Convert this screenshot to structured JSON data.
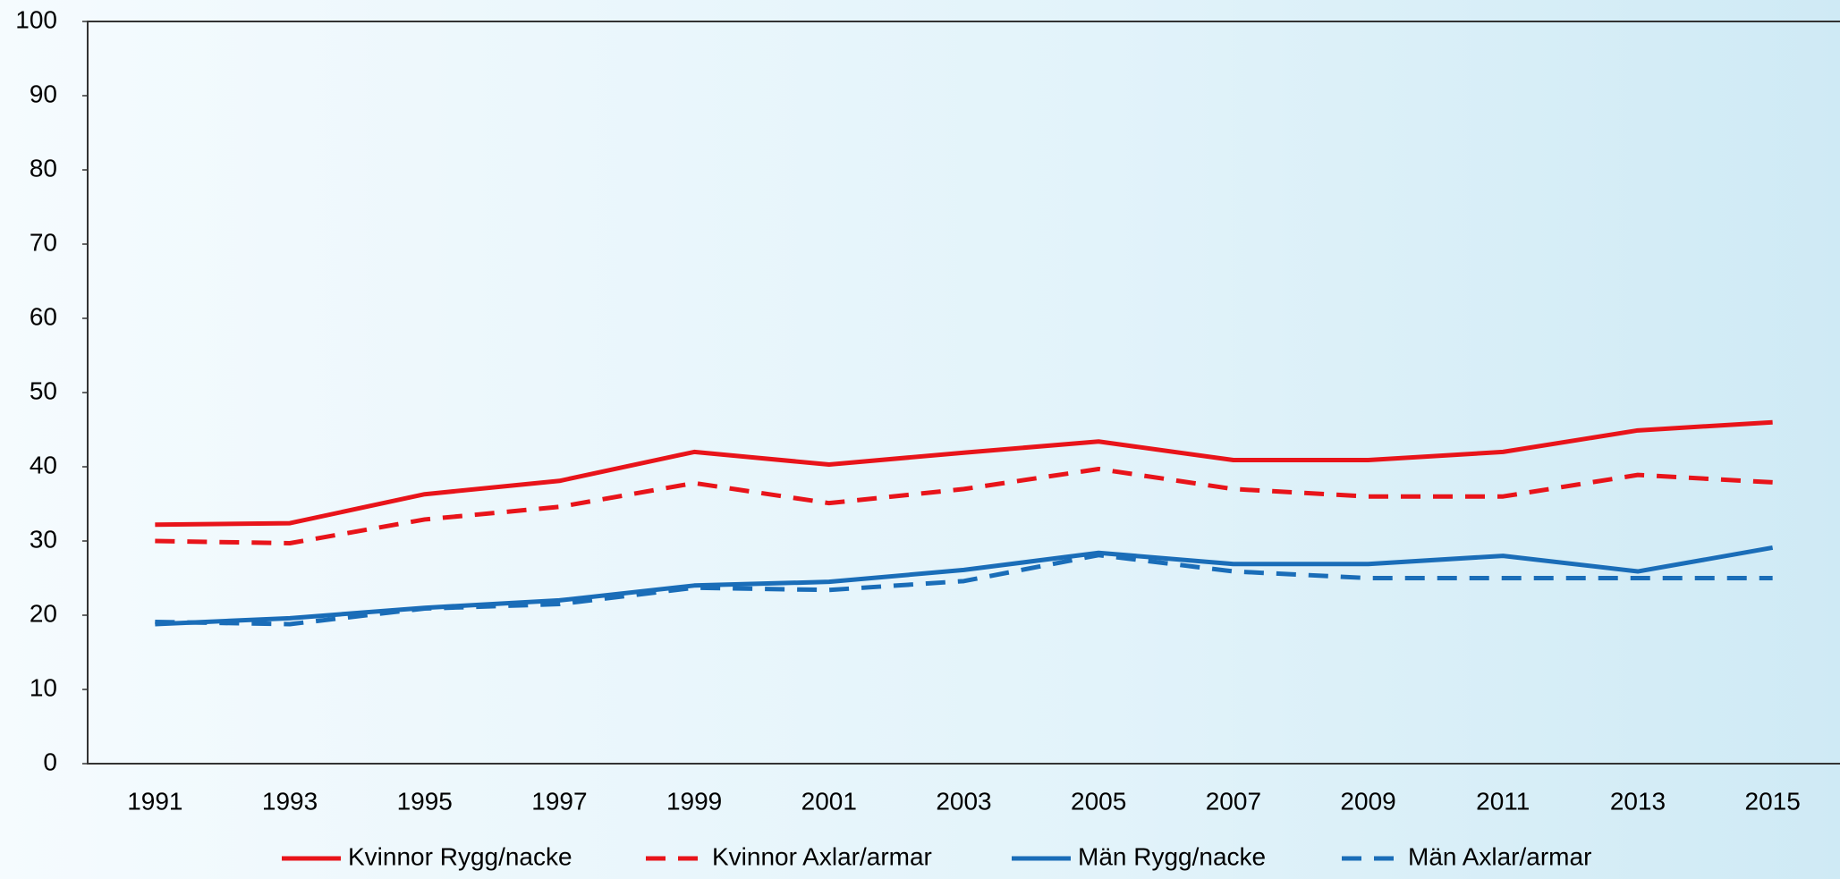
{
  "chart_data": {
    "type": "line",
    "categories": [
      "1991",
      "1993",
      "1995",
      "1997",
      "1999",
      "2001",
      "2003",
      "2005",
      "2007",
      "2009",
      "2011",
      "2013",
      "2015"
    ],
    "series": [
      {
        "name": "Kvinnor Rygg/nacke",
        "color": "#e8141a",
        "style": "solid",
        "values": [
          32.2,
          32.4,
          36.3,
          38.1,
          42.0,
          40.3,
          41.9,
          43.4,
          40.9,
          40.9,
          42.0,
          44.9,
          46.0
        ]
      },
      {
        "name": "Kvinnor Axlar/armar",
        "color": "#e8141a",
        "style": "dashed",
        "values": [
          30.0,
          29.7,
          32.9,
          34.6,
          37.8,
          35.1,
          37.0,
          39.7,
          37.0,
          36.0,
          36.0,
          38.9,
          37.9
        ]
      },
      {
        "name": "Män Rygg/nacke",
        "color": "#1a6db8",
        "style": "solid",
        "values": [
          18.8,
          19.6,
          21.0,
          22.0,
          24.0,
          24.5,
          26.1,
          28.4,
          26.9,
          26.9,
          28.0,
          25.9,
          29.1
        ]
      },
      {
        "name": "Män Axlar/armar",
        "color": "#1a6db8",
        "style": "dashed",
        "values": [
          19.1,
          18.8,
          20.9,
          21.5,
          23.7,
          23.4,
          24.6,
          28.1,
          25.9,
          25.0,
          25.0,
          25.0,
          25.0
        ]
      }
    ],
    "ylim": [
      0,
      100
    ],
    "yticks": [
      0,
      10,
      20,
      30,
      40,
      50,
      60,
      70,
      80,
      90,
      100
    ],
    "grid": false,
    "legend": "bottom"
  }
}
